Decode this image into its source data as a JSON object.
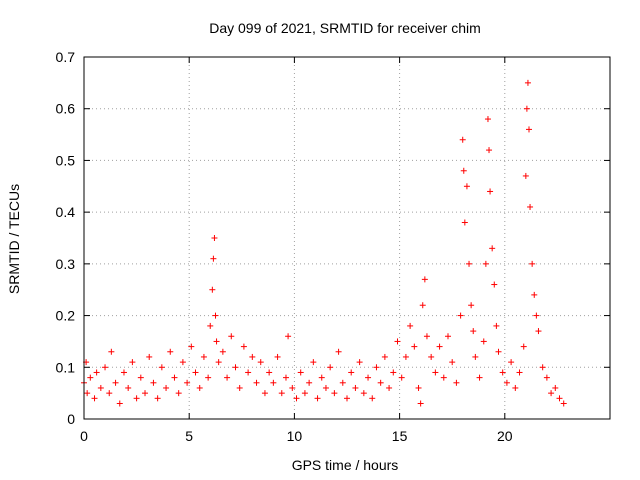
{
  "chart_data": {
    "type": "scatter",
    "title": "Day 099 of 2021, SRMTID for receiver chim",
    "xlabel": "GPS time / hours",
    "ylabel": "SRMTID / TECUs",
    "xlim": [
      0,
      25
    ],
    "ylim": [
      0,
      0.7
    ],
    "xticks": [
      0,
      5,
      10,
      15,
      20
    ],
    "yticks": [
      0,
      0.1,
      0.2,
      0.3,
      0.4,
      0.5,
      0.6,
      0.7
    ],
    "xtick_labels": [
      "0",
      "5",
      "10",
      "15",
      "20"
    ],
    "ytick_labels": [
      "0",
      "0.1",
      "0.2",
      "0.3",
      "0.4",
      "0.5",
      "0.6",
      "0.7"
    ],
    "grid": true,
    "marker": "plus",
    "series": [
      {
        "name": "SRMTID",
        "color": "#ff0000",
        "description": "dense scatter of SRMTID values; baseline mostly 0.02-0.15 TECU with peaks near 6.2 h, 16 h, 18 h, 19.3 h and 21.1 h",
        "points": [
          [
            0.0,
            0.07
          ],
          [
            0.1,
            0.11
          ],
          [
            0.15,
            0.05
          ],
          [
            0.3,
            0.08
          ],
          [
            0.5,
            0.04
          ],
          [
            0.6,
            0.09
          ],
          [
            0.8,
            0.06
          ],
          [
            1.0,
            0.1
          ],
          [
            1.2,
            0.05
          ],
          [
            1.3,
            0.13
          ],
          [
            1.5,
            0.07
          ],
          [
            1.7,
            0.03
          ],
          [
            1.9,
            0.09
          ],
          [
            2.1,
            0.06
          ],
          [
            2.3,
            0.11
          ],
          [
            2.5,
            0.04
          ],
          [
            2.7,
            0.08
          ],
          [
            2.9,
            0.05
          ],
          [
            3.1,
            0.12
          ],
          [
            3.3,
            0.07
          ],
          [
            3.5,
            0.04
          ],
          [
            3.7,
            0.1
          ],
          [
            3.9,
            0.06
          ],
          [
            4.1,
            0.13
          ],
          [
            4.3,
            0.08
          ],
          [
            4.5,
            0.05
          ],
          [
            4.7,
            0.11
          ],
          [
            4.9,
            0.07
          ],
          [
            5.1,
            0.14
          ],
          [
            5.3,
            0.09
          ],
          [
            5.5,
            0.06
          ],
          [
            5.7,
            0.12
          ],
          [
            5.9,
            0.08
          ],
          [
            6.0,
            0.18
          ],
          [
            6.1,
            0.25
          ],
          [
            6.15,
            0.31
          ],
          [
            6.2,
            0.35
          ],
          [
            6.25,
            0.2
          ],
          [
            6.3,
            0.15
          ],
          [
            6.4,
            0.11
          ],
          [
            6.6,
            0.13
          ],
          [
            6.8,
            0.08
          ],
          [
            7.0,
            0.16
          ],
          [
            7.2,
            0.1
          ],
          [
            7.4,
            0.06
          ],
          [
            7.6,
            0.14
          ],
          [
            7.8,
            0.09
          ],
          [
            8.0,
            0.12
          ],
          [
            8.2,
            0.07
          ],
          [
            8.4,
            0.11
          ],
          [
            8.6,
            0.05
          ],
          [
            8.8,
            0.09
          ],
          [
            9.0,
            0.07
          ],
          [
            9.2,
            0.12
          ],
          [
            9.4,
            0.05
          ],
          [
            9.6,
            0.08
          ],
          [
            9.7,
            0.16
          ],
          [
            9.9,
            0.06
          ],
          [
            10.1,
            0.04
          ],
          [
            10.3,
            0.09
          ],
          [
            10.5,
            0.05
          ],
          [
            10.7,
            0.07
          ],
          [
            10.9,
            0.11
          ],
          [
            11.1,
            0.04
          ],
          [
            11.3,
            0.08
          ],
          [
            11.5,
            0.06
          ],
          [
            11.7,
            0.1
          ],
          [
            11.9,
            0.05
          ],
          [
            12.1,
            0.13
          ],
          [
            12.3,
            0.07
          ],
          [
            12.5,
            0.04
          ],
          [
            12.7,
            0.09
          ],
          [
            12.9,
            0.06
          ],
          [
            13.1,
            0.11
          ],
          [
            13.3,
            0.05
          ],
          [
            13.5,
            0.08
          ],
          [
            13.7,
            0.04
          ],
          [
            13.9,
            0.1
          ],
          [
            14.1,
            0.07
          ],
          [
            14.3,
            0.12
          ],
          [
            14.5,
            0.06
          ],
          [
            14.7,
            0.09
          ],
          [
            14.9,
            0.15
          ],
          [
            15.1,
            0.08
          ],
          [
            15.3,
            0.12
          ],
          [
            15.5,
            0.18
          ],
          [
            15.7,
            0.14
          ],
          [
            15.9,
            0.06
          ],
          [
            16.0,
            0.03
          ],
          [
            16.1,
            0.22
          ],
          [
            16.2,
            0.27
          ],
          [
            16.3,
            0.16
          ],
          [
            16.5,
            0.12
          ],
          [
            16.7,
            0.09
          ],
          [
            16.9,
            0.14
          ],
          [
            17.1,
            0.08
          ],
          [
            17.3,
            0.16
          ],
          [
            17.5,
            0.11
          ],
          [
            17.7,
            0.07
          ],
          [
            17.9,
            0.2
          ],
          [
            18.0,
            0.54
          ],
          [
            18.05,
            0.48
          ],
          [
            18.1,
            0.38
          ],
          [
            18.2,
            0.45
          ],
          [
            18.3,
            0.3
          ],
          [
            18.4,
            0.22
          ],
          [
            18.5,
            0.17
          ],
          [
            18.6,
            0.12
          ],
          [
            18.8,
            0.08
          ],
          [
            19.0,
            0.15
          ],
          [
            19.1,
            0.3
          ],
          [
            19.2,
            0.58
          ],
          [
            19.25,
            0.52
          ],
          [
            19.3,
            0.44
          ],
          [
            19.4,
            0.33
          ],
          [
            19.5,
            0.26
          ],
          [
            19.6,
            0.18
          ],
          [
            19.7,
            0.13
          ],
          [
            19.9,
            0.09
          ],
          [
            20.1,
            0.07
          ],
          [
            20.3,
            0.11
          ],
          [
            20.5,
            0.06
          ],
          [
            20.7,
            0.09
          ],
          [
            20.9,
            0.14
          ],
          [
            21.0,
            0.47
          ],
          [
            21.05,
            0.6
          ],
          [
            21.1,
            0.65
          ],
          [
            21.15,
            0.56
          ],
          [
            21.2,
            0.41
          ],
          [
            21.3,
            0.3
          ],
          [
            21.4,
            0.24
          ],
          [
            21.5,
            0.2
          ],
          [
            21.6,
            0.17
          ],
          [
            21.8,
            0.1
          ],
          [
            22.0,
            0.08
          ],
          [
            22.2,
            0.05
          ],
          [
            22.4,
            0.06
          ],
          [
            22.6,
            0.04
          ],
          [
            22.8,
            0.03
          ]
        ]
      }
    ]
  }
}
